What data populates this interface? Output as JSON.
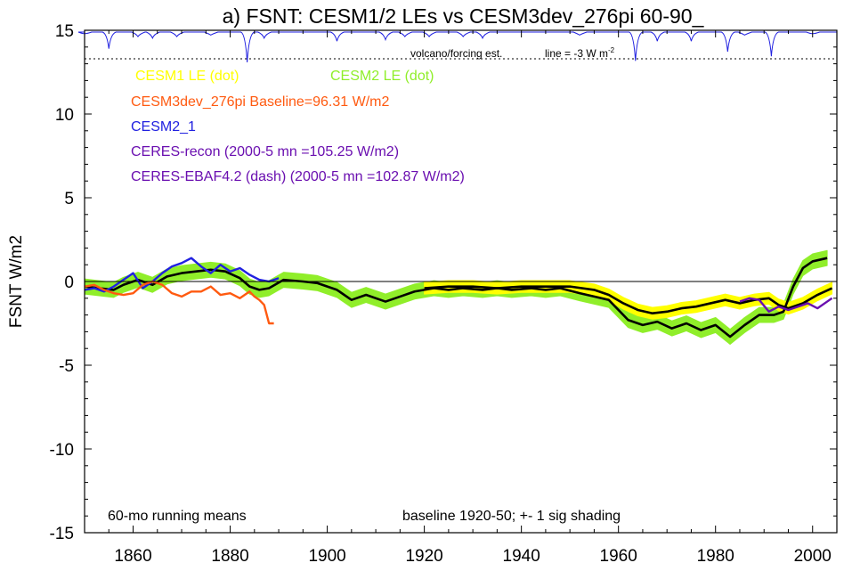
{
  "chart_data": {
    "type": "line",
    "title": "a) FSNT: CESM1/2 LEs vs CESM3dev_276pi 60-90_",
    "ylabel": "FSNT W/m2",
    "xlabel": "",
    "xlim": [
      1850,
      2005
    ],
    "ylim": [
      -15,
      15
    ],
    "x_ticks": [
      1860,
      1880,
      1900,
      1920,
      1940,
      1960,
      1980,
      2000
    ],
    "y_ticks": [
      -15,
      -10,
      -5,
      0,
      5,
      10,
      15
    ],
    "zero_line": 0,
    "forcing_baseline": 13.3,
    "annotations": {
      "volcano": "volcano/forcing est.",
      "line_prefix": "line = -3 W m",
      "line_sup": "-2",
      "bottom_left": "60-mo running means",
      "bottom_right": "baseline 1920-50; +- 1 sig shading"
    },
    "legend": [
      {
        "text": "CESM1 LE (dot)",
        "color": "#ffff00"
      },
      {
        "text": "CESM2 LE (dot)",
        "color": "#90ee2a"
      },
      {
        "text": "CESM3dev_276pi Baseline=96.31 W/m2",
        "color": "#ff5a10"
      },
      {
        "text": "CESM2_1",
        "color": "#2020e0"
      },
      {
        "text": "CERES-recon (2000-5 mn =105.25 W/m2)",
        "color": "#6a0fb0"
      },
      {
        "text": "CERES-EBAF4.2 (dash) (2000-5 mn =102.87 W/m2)",
        "color": "#6a0fb0"
      }
    ],
    "series": [
      {
        "name": "CESM2 LE (dot)",
        "color": "#90ee2a",
        "role": "band",
        "x": [
          1850,
          1853,
          1856,
          1858,
          1861,
          1864,
          1867,
          1870,
          1873,
          1876,
          1879,
          1882,
          1884,
          1886,
          1888,
          1891,
          1895,
          1898,
          1902,
          1905,
          1908,
          1912,
          1915,
          1918,
          1922,
          1925,
          1928,
          1932,
          1935,
          1938,
          1942,
          1945,
          1948,
          1952,
          1955,
          1958,
          1960,
          1962,
          1965,
          1968,
          1971,
          1974,
          1977,
          1980,
          1983,
          1986,
          1989,
          1992,
          1994,
          1996,
          1998,
          2000,
          2003
        ],
        "values": [
          -0.3,
          -0.4,
          -0.5,
          -0.2,
          0.1,
          -0.2,
          0.3,
          0.5,
          0.6,
          0.7,
          0.6,
          0.2,
          -0.3,
          -0.5,
          -0.4,
          0.1,
          0.0,
          -0.1,
          -0.5,
          -1.1,
          -0.8,
          -1.2,
          -0.9,
          -0.6,
          -0.4,
          -0.5,
          -0.4,
          -0.5,
          -0.4,
          -0.5,
          -0.4,
          -0.5,
          -0.4,
          -0.7,
          -0.9,
          -1.1,
          -1.7,
          -2.3,
          -2.6,
          -2.4,
          -2.8,
          -2.5,
          -2.9,
          -2.6,
          -3.3,
          -2.6,
          -2.0,
          -2.0,
          -1.8,
          -0.3,
          0.8,
          1.2,
          1.4
        ],
        "spread": 0.45
      },
      {
        "name": "CESM1 LE (dot)",
        "color": "#ffff00",
        "role": "band",
        "x": [
          1920,
          1925,
          1930,
          1935,
          1940,
          1945,
          1950,
          1955,
          1958,
          1961,
          1964,
          1967,
          1970,
          1973,
          1976,
          1979,
          1982,
          1985,
          1988,
          1991,
          1993,
          1995,
          1998,
          2001,
          2004
        ],
        "values": [
          -0.4,
          -0.3,
          -0.3,
          -0.4,
          -0.3,
          -0.3,
          -0.3,
          -0.5,
          -0.8,
          -1.3,
          -1.7,
          -1.9,
          -1.8,
          -1.6,
          -1.5,
          -1.3,
          -1.1,
          -1.3,
          -1.1,
          -1.0,
          -1.4,
          -1.6,
          -1.3,
          -0.8,
          -0.4
        ],
        "spread": 0.35
      },
      {
        "name": "CESM2 LE (dot)",
        "color": "#000000",
        "role": "mean",
        "x": [
          1850,
          1853,
          1856,
          1858,
          1861,
          1864,
          1867,
          1870,
          1873,
          1876,
          1879,
          1882,
          1884,
          1886,
          1888,
          1891,
          1895,
          1898,
          1902,
          1905,
          1908,
          1912,
          1915,
          1918,
          1922,
          1925,
          1928,
          1932,
          1935,
          1938,
          1942,
          1945,
          1948,
          1952,
          1955,
          1958,
          1960,
          1962,
          1965,
          1968,
          1971,
          1974,
          1977,
          1980,
          1983,
          1986,
          1989,
          1992,
          1994,
          1996,
          1998,
          2000,
          2003
        ],
        "values": [
          -0.3,
          -0.4,
          -0.5,
          -0.2,
          0.1,
          -0.2,
          0.3,
          0.5,
          0.6,
          0.7,
          0.6,
          0.2,
          -0.3,
          -0.5,
          -0.4,
          0.1,
          0.0,
          -0.1,
          -0.5,
          -1.1,
          -0.8,
          -1.2,
          -0.9,
          -0.6,
          -0.4,
          -0.5,
          -0.4,
          -0.5,
          -0.4,
          -0.5,
          -0.4,
          -0.5,
          -0.4,
          -0.7,
          -0.9,
          -1.1,
          -1.7,
          -2.3,
          -2.6,
          -2.4,
          -2.8,
          -2.5,
          -2.9,
          -2.6,
          -3.3,
          -2.6,
          -2.0,
          -2.0,
          -1.8,
          -0.3,
          0.8,
          1.2,
          1.4
        ]
      },
      {
        "name": "CESM1 LE (dot)",
        "color": "#000000",
        "role": "mean",
        "x": [
          1920,
          1925,
          1930,
          1935,
          1940,
          1945,
          1950,
          1955,
          1958,
          1961,
          1964,
          1967,
          1970,
          1973,
          1976,
          1979,
          1982,
          1985,
          1988,
          1991,
          1993,
          1995,
          1998,
          2001,
          2004
        ],
        "values": [
          -0.4,
          -0.3,
          -0.3,
          -0.4,
          -0.3,
          -0.3,
          -0.3,
          -0.5,
          -0.8,
          -1.3,
          -1.7,
          -1.9,
          -1.8,
          -1.6,
          -1.5,
          -1.3,
          -1.1,
          -1.3,
          -1.1,
          -1.0,
          -1.4,
          -1.6,
          -1.3,
          -0.8,
          -0.4
        ]
      },
      {
        "name": "CESM2_1",
        "color": "#2020e0",
        "role": "line",
        "x": [
          1850,
          1852,
          1854,
          1856,
          1858,
          1860,
          1862,
          1864,
          1866,
          1868,
          1870,
          1872,
          1874,
          1876,
          1878,
          1880,
          1882,
          1884,
          1886,
          1888,
          1890
        ],
        "values": [
          -0.5,
          -0.4,
          -0.6,
          -0.3,
          0.1,
          0.5,
          -0.4,
          0.0,
          0.5,
          0.9,
          1.1,
          1.4,
          0.9,
          0.5,
          1.0,
          0.6,
          0.8,
          0.4,
          0.1,
          0.0,
          0.2
        ]
      },
      {
        "name": "CESM3dev_276pi Baseline=96.31 W/m2",
        "color": "#ff5a10",
        "role": "line",
        "x": [
          1850,
          1852,
          1854,
          1856,
          1858,
          1860,
          1862,
          1864,
          1866,
          1868,
          1870,
          1872,
          1874,
          1876,
          1878,
          1880,
          1882,
          1884,
          1885,
          1886,
          1887,
          1888,
          1889
        ],
        "values": [
          -0.3,
          -0.2,
          -0.5,
          -0.7,
          -0.8,
          -0.7,
          -0.2,
          0.0,
          -0.2,
          -0.7,
          -0.9,
          -0.6,
          -0.6,
          -0.3,
          -0.8,
          -0.7,
          -1.0,
          -0.6,
          -0.9,
          -1.1,
          -1.4,
          -2.5,
          -2.5
        ]
      },
      {
        "name": "CERES-recon (2000-5 mn =105.25 W/m2)",
        "color": "#6a0fb0",
        "role": "line",
        "x": [
          1985,
          1987,
          1989,
          1991,
          1993,
          1995,
          1997,
          1999,
          2001,
          2003,
          2004
        ],
        "values": [
          -1.2,
          -1.0,
          -1.1,
          -1.8,
          -1.5,
          -1.7,
          -1.5,
          -1.3,
          -1.6,
          -1.2,
          -1.0
        ]
      }
    ],
    "volcano_dips": [
      {
        "year": 1850,
        "depth": 0.05
      },
      {
        "year": 1855,
        "depth": 0.55
      },
      {
        "year": 1861,
        "depth": 0.15
      },
      {
        "year": 1864,
        "depth": 0.2
      },
      {
        "year": 1869,
        "depth": 0.15
      },
      {
        "year": 1876,
        "depth": 0.1
      },
      {
        "year": 1883.5,
        "depth": 1.0
      },
      {
        "year": 1887,
        "depth": 0.2
      },
      {
        "year": 1902,
        "depth": 0.3
      },
      {
        "year": 1912,
        "depth": 0.25
      },
      {
        "year": 1916,
        "depth": 0.15
      },
      {
        "year": 1921,
        "depth": 0.15
      },
      {
        "year": 1928,
        "depth": 0.15
      },
      {
        "year": 1932,
        "depth": 0.2
      },
      {
        "year": 1952,
        "depth": 0.1
      },
      {
        "year": 1963.5,
        "depth": 0.95
      },
      {
        "year": 1968,
        "depth": 0.3
      },
      {
        "year": 1975,
        "depth": 0.3
      },
      {
        "year": 1982.5,
        "depth": 0.65
      },
      {
        "year": 1986,
        "depth": 0.1
      },
      {
        "year": 1991.5,
        "depth": 0.8
      },
      {
        "year": 2000,
        "depth": 0.05
      }
    ]
  }
}
